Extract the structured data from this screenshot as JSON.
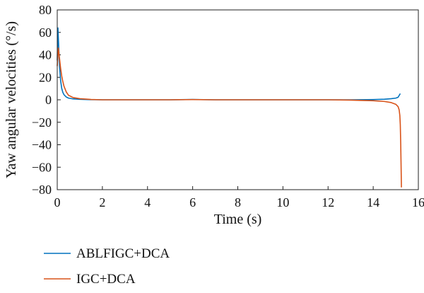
{
  "chart_data": {
    "type": "line",
    "xlabel": "Time (s)",
    "ylabel": "Yaw angular velocities (°/s)",
    "xlim": [
      0,
      16
    ],
    "ylim": [
      -80,
      80
    ],
    "x_ticks": [
      0,
      2,
      4,
      6,
      8,
      10,
      12,
      14,
      16
    ],
    "y_ticks": [
      80,
      60,
      40,
      20,
      0,
      -20,
      -40,
      -60,
      -80
    ],
    "x_tick_labels": [
      "0",
      "2",
      "4",
      "6",
      "8",
      "10",
      "12",
      "14",
      "16"
    ],
    "y_tick_labels": [
      "80",
      "60",
      "40",
      "20",
      "0",
      "−20",
      "−40",
      "−60",
      "−80"
    ],
    "grid": false,
    "legend_position": "bottom-left, below plot",
    "series": [
      {
        "name": "ABLFIGC+DCA",
        "color": "#0072BD",
        "x": [
          0,
          0.03,
          0.06,
          0.1,
          0.15,
          0.2,
          0.25,
          0.3,
          0.4,
          0.5,
          0.7,
          1.0,
          1.5,
          2,
          3,
          4,
          5,
          6,
          7,
          8,
          9,
          10,
          11,
          12,
          13,
          14,
          14.5,
          14.8,
          15.0,
          15.1,
          15.2
        ],
        "y": [
          35,
          64,
          50,
          30,
          17,
          10,
          6.5,
          4.5,
          2.5,
          1.5,
          0.8,
          0.4,
          0.1,
          0,
          0,
          0,
          0,
          0.3,
          0,
          0,
          0,
          0,
          0,
          0,
          0,
          0.2,
          0.5,
          1.0,
          1.5,
          2.2,
          5.5
        ]
      },
      {
        "name": "IGC+DCA",
        "color": "#D95319",
        "x": [
          0,
          0.05,
          0.1,
          0.15,
          0.2,
          0.25,
          0.3,
          0.4,
          0.5,
          0.7,
          1.0,
          1.5,
          2,
          3,
          4,
          5,
          6,
          7,
          8,
          9,
          10,
          11,
          12,
          13,
          14,
          14.5,
          14.8,
          15.0,
          15.1,
          15.15,
          15.18,
          15.2,
          15.22,
          15.24,
          15.25
        ],
        "y": [
          30,
          46,
          37,
          28,
          21,
          16,
          12,
          7,
          4,
          2,
          1,
          0.3,
          0,
          0,
          0,
          0,
          0.2,
          0,
          0,
          0,
          0,
          0,
          0,
          -0.3,
          -0.8,
          -1.5,
          -2.5,
          -4,
          -6,
          -9,
          -14,
          -22,
          -40,
          -65,
          -78
        ]
      }
    ]
  }
}
